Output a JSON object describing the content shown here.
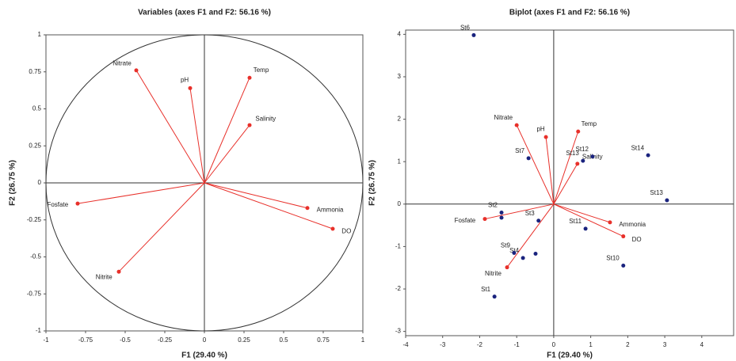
{
  "chart_data": [
    {
      "type": "biplot",
      "title": "Variables (axes F1 and F2: 56.16 %)",
      "x_label": "F1 (29.40 %)",
      "y_label": "F2 (26.75 %)",
      "xlim": [
        -1,
        1
      ],
      "ylim": [
        -1,
        1
      ],
      "xticks": [
        -1,
        -0.75,
        -0.5,
        -0.25,
        0,
        0.25,
        0.5,
        0.75,
        1
      ],
      "yticks": [
        -1,
        -0.75,
        -0.5,
        -0.25,
        0,
        0.25,
        0.5,
        0.75,
        1
      ],
      "circle_radius": 1,
      "variables": {
        "color": "#e8302a",
        "names": [
          "Nitrate",
          "pH",
          "Temp",
          "Salinity",
          "Ammonia",
          "DO",
          "Fosfate",
          "Nitrite"
        ],
        "x": [
          -0.43,
          -0.09,
          0.285,
          0.285,
          0.65,
          0.81,
          -0.8,
          -0.54
        ],
        "y": [
          0.76,
          0.64,
          0.71,
          0.39,
          -0.17,
          -0.31,
          -0.14,
          -0.6
        ]
      }
    },
    {
      "type": "biplot",
      "title": "Biplot (axes F1 and F2: 56.16 %)",
      "x_label": "F1 (29.40 %)",
      "y_label": "F2 (26.75 %)",
      "xlim": [
        -4,
        4.86
      ],
      "ylim": [
        -3.1,
        4.1
      ],
      "xticks": [
        -4,
        -3,
        -2,
        -1,
        0,
        1,
        2,
        3,
        4
      ],
      "yticks": [
        -3,
        -2,
        -1,
        0,
        1,
        2,
        3,
        4
      ],
      "variables": {
        "color": "#e8302a",
        "names": [
          "Nitrate",
          "pH",
          "Temp",
          "Salinity",
          "Ammonia",
          "DO",
          "Fosfate",
          "Nitrite"
        ],
        "x": [
          -1.0,
          -0.21,
          0.66,
          0.64,
          1.52,
          1.88,
          -1.86,
          -1.26
        ],
        "y": [
          1.86,
          1.58,
          1.71,
          0.95,
          -0.43,
          -0.76,
          -0.35,
          -1.49
        ]
      },
      "observations": {
        "color": "#1a237e",
        "names": [
          "St6",
          "St7",
          "St12",
          "St13",
          "St14",
          "St13",
          "St2",
          null,
          "St3",
          "St11",
          "St10",
          "St4",
          null,
          "St9",
          "St1"
        ],
        "x": [
          -2.16,
          -0.68,
          1.05,
          0.79,
          2.55,
          3.06,
          -1.41,
          -1.41,
          -0.41,
          0.86,
          1.88,
          -0.83,
          -0.49,
          -1.07,
          -1.6
        ],
        "y": [
          3.98,
          1.08,
          1.12,
          1.02,
          1.15,
          0.09,
          -0.2,
          -0.32,
          -0.39,
          -0.58,
          -1.45,
          -1.27,
          -1.17,
          -1.15,
          -2.18
        ]
      }
    }
  ]
}
